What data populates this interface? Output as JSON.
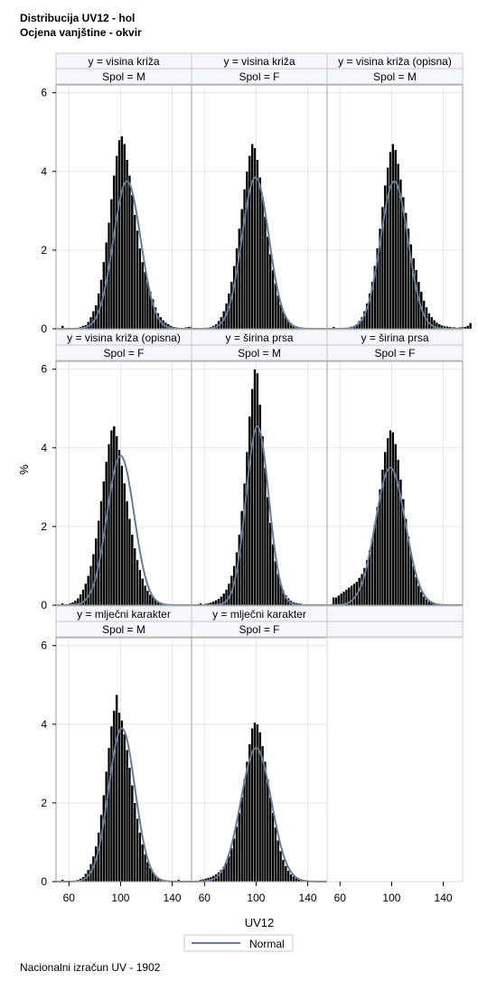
{
  "titles": [
    "Distribucija UV12 - hol",
    "Ocjena vanjštine - okvir"
  ],
  "footnote": "Nacionalni izračun UV - 1902",
  "colors": {
    "bar_fill": "#000000",
    "bar_edge": "#ffffff",
    "normal_curve": "#667d9b",
    "header_bg": "#f6f7fc",
    "grid": "#e6e6e6"
  },
  "chart_data": {
    "type": "bar",
    "subtype": "histogram panel with normal density overlay",
    "xlabel": "UV12",
    "ylabel": "%",
    "xlim": [
      50,
      155
    ],
    "ylim": [
      0,
      6.2
    ],
    "xticks": [
      60,
      100,
      140
    ],
    "yticks": [
      0,
      2,
      4,
      6
    ],
    "grid": true,
    "legend": {
      "position": "bottom",
      "items": [
        "Normal"
      ]
    },
    "bin_width": 2,
    "panels": [
      {
        "y": "y = visina križa",
        "spol": "Spol = M",
        "histogram": {
          "start": 54,
          "percent": [
            0.08,
            0,
            0,
            0,
            0,
            0,
            0.02,
            0.05,
            0.08,
            0.1,
            0.18,
            0.3,
            0.45,
            0.6,
            0.9,
            1.25,
            1.7,
            2.2,
            2.7,
            3.3,
            3.9,
            4.4,
            4.8,
            4.9,
            4.7,
            4.3,
            3.9,
            3.4,
            2.9,
            2.5,
            2.05,
            1.7,
            1.45,
            1.2,
            0.95,
            0.75,
            0.55,
            0.4,
            0.3,
            0.22,
            0.16,
            0.12,
            0.08,
            0.05,
            0.04,
            0.03,
            0.02,
            0.03,
            0.04,
            0.05,
            0.06,
            0.05,
            0.08,
            0.2
          ]
        },
        "normal": {
          "mean": 105,
          "sd": 10.6,
          "peak": 3.75
        }
      },
      {
        "y": "y = visina križa",
        "spol": "Spol = F",
        "histogram": {
          "start": 60,
          "percent": [
            0.02,
            0.03,
            0.05,
            0.08,
            0.12,
            0.2,
            0.3,
            0.45,
            0.65,
            0.9,
            1.2,
            1.6,
            2.05,
            2.55,
            3.05,
            3.55,
            4.0,
            4.4,
            4.7,
            4.6,
            4.3,
            3.85,
            3.35,
            2.85,
            2.35,
            1.9,
            1.5,
            1.15,
            0.85,
            0.62,
            0.45,
            0.32,
            0.22,
            0.15,
            0.1,
            0.07,
            0.05,
            0.04,
            0.03,
            0.02,
            0.02,
            0.03
          ]
        },
        "normal": {
          "mean": 99.5,
          "sd": 10.4,
          "peak": 3.85
        }
      },
      {
        "y": "y = visina križa (opisna)",
        "spol": "Spol = M",
        "histogram": {
          "start": 54,
          "percent": [
            0.05,
            0,
            0,
            0,
            0,
            0.02,
            0.04,
            0.06,
            0.08,
            0.12,
            0.2,
            0.3,
            0.45,
            0.65,
            0.9,
            1.2,
            1.6,
            2.05,
            2.55,
            3.1,
            3.65,
            4.1,
            4.5,
            4.7,
            4.55,
            4.2,
            3.8,
            3.35,
            2.95,
            2.55,
            2.15,
            1.8,
            1.5,
            1.2,
            0.95,
            0.72,
            0.55,
            0.4,
            0.3,
            0.22,
            0.16,
            0.12,
            0.09,
            0.07,
            0.06,
            0.05,
            0.04,
            0.04,
            0.03,
            0.04,
            0.05,
            0.05,
            0.08,
            0.15
          ]
        },
        "normal": {
          "mean": 102,
          "sd": 10.6,
          "peak": 3.75
        }
      },
      {
        "y": "y = visina križa (opisna)",
        "spol": "Spol = F",
        "histogram": {
          "start": 54,
          "percent": [
            0.05,
            0.02,
            0.03,
            0.05,
            0.08,
            0.12,
            0.18,
            0.28,
            0.4,
            0.55,
            0.75,
            1.0,
            1.3,
            1.7,
            2.15,
            2.65,
            3.15,
            3.65,
            4.1,
            4.45,
            4.55,
            4.3,
            3.95,
            3.55,
            3.1,
            2.65,
            2.2,
            1.8,
            1.45,
            1.15,
            0.9,
            0.68,
            0.5,
            0.37,
            0.27,
            0.2,
            0.14,
            0.1,
            0.07,
            0.05,
            0.04,
            0.03,
            0.03,
            0.02,
            0.02,
            0.02,
            0.03
          ]
        },
        "normal": {
          "mean": 100,
          "sd": 10.5,
          "peak": 3.8
        }
      },
      {
        "y": "y = širina prsa",
        "spol": "Spol = M",
        "histogram": {
          "start": 56,
          "percent": [
            0.05,
            0.03,
            0.04,
            0.05,
            0.07,
            0.1,
            0.13,
            0.17,
            0.22,
            0.3,
            0.4,
            0.55,
            0.75,
            1.0,
            1.35,
            1.8,
            2.4,
            3.1,
            3.9,
            4.8,
            5.5,
            6.0,
            5.9,
            5.1,
            4.3,
            3.5,
            2.75,
            2.1,
            1.55,
            1.12,
            0.8,
            0.55,
            0.38,
            0.26,
            0.18,
            0.12,
            0.08,
            0.06,
            0.05,
            0.04,
            0.03,
            0.03,
            0.02,
            0.02,
            0.03,
            0.03
          ]
        },
        "normal": {
          "mean": 101,
          "sd": 8.8,
          "peak": 4.55
        }
      },
      {
        "y": "y = širina prsa",
        "spol": "Spol = F",
        "histogram": {
          "start": 54,
          "percent": [
            0.2,
            0.2,
            0.25,
            0.3,
            0.35,
            0.4,
            0.45,
            0.5,
            0.55,
            0.6,
            0.7,
            0.8,
            0.95,
            1.15,
            1.4,
            1.7,
            2.05,
            2.5,
            2.95,
            3.45,
            3.9,
            4.25,
            4.45,
            4.4,
            4.1,
            3.7,
            3.2,
            2.7,
            2.2,
            1.75,
            1.35,
            1.0,
            0.72,
            0.5,
            0.34,
            0.22,
            0.15,
            0.1,
            0.07,
            0.05,
            0.03,
            0.02,
            0.02,
            0.01
          ]
        },
        "normal": {
          "mean": 99,
          "sd": 11.5,
          "peak": 3.5
        }
      },
      {
        "y": "y = mlječni karakter",
        "spol": "Spol = M",
        "histogram": {
          "start": 54,
          "percent": [
            0.05,
            0,
            0,
            0,
            0.02,
            0.03,
            0.05,
            0.08,
            0.12,
            0.2,
            0.3,
            0.45,
            0.65,
            0.9,
            1.25,
            1.7,
            2.2,
            2.8,
            3.4,
            3.95,
            4.35,
            4.75,
            4.3,
            4.1,
            3.75,
            3.35,
            2.9,
            2.45,
            2.0,
            1.6,
            1.25,
            0.95,
            0.7,
            0.5,
            0.35,
            0.24,
            0.16,
            0.1,
            0.07,
            0.05,
            0.04,
            0.03,
            0.02,
            0.02,
            0.03,
            0.05
          ]
        },
        "normal": {
          "mean": 101,
          "sd": 10.2,
          "peak": 3.9
        }
      },
      {
        "y": "y = mlječni karakter",
        "spol": "Spol = F",
        "histogram": {
          "start": 56,
          "percent": [
            0.05,
            0.06,
            0.08,
            0.1,
            0.12,
            0.15,
            0.19,
            0.24,
            0.3,
            0.38,
            0.5,
            0.65,
            0.85,
            1.1,
            1.4,
            1.75,
            2.15,
            2.6,
            3.05,
            3.5,
            3.9,
            4.05,
            4.0,
            3.8,
            3.45,
            3.05,
            2.6,
            2.15,
            1.75,
            1.38,
            1.05,
            0.78,
            0.56,
            0.4,
            0.28,
            0.19,
            0.13,
            0.09,
            0.06,
            0.04,
            0.03,
            0.02,
            0.02,
            0.02
          ]
        },
        "normal": {
          "mean": 100,
          "sd": 11.8,
          "peak": 3.4
        }
      }
    ]
  }
}
